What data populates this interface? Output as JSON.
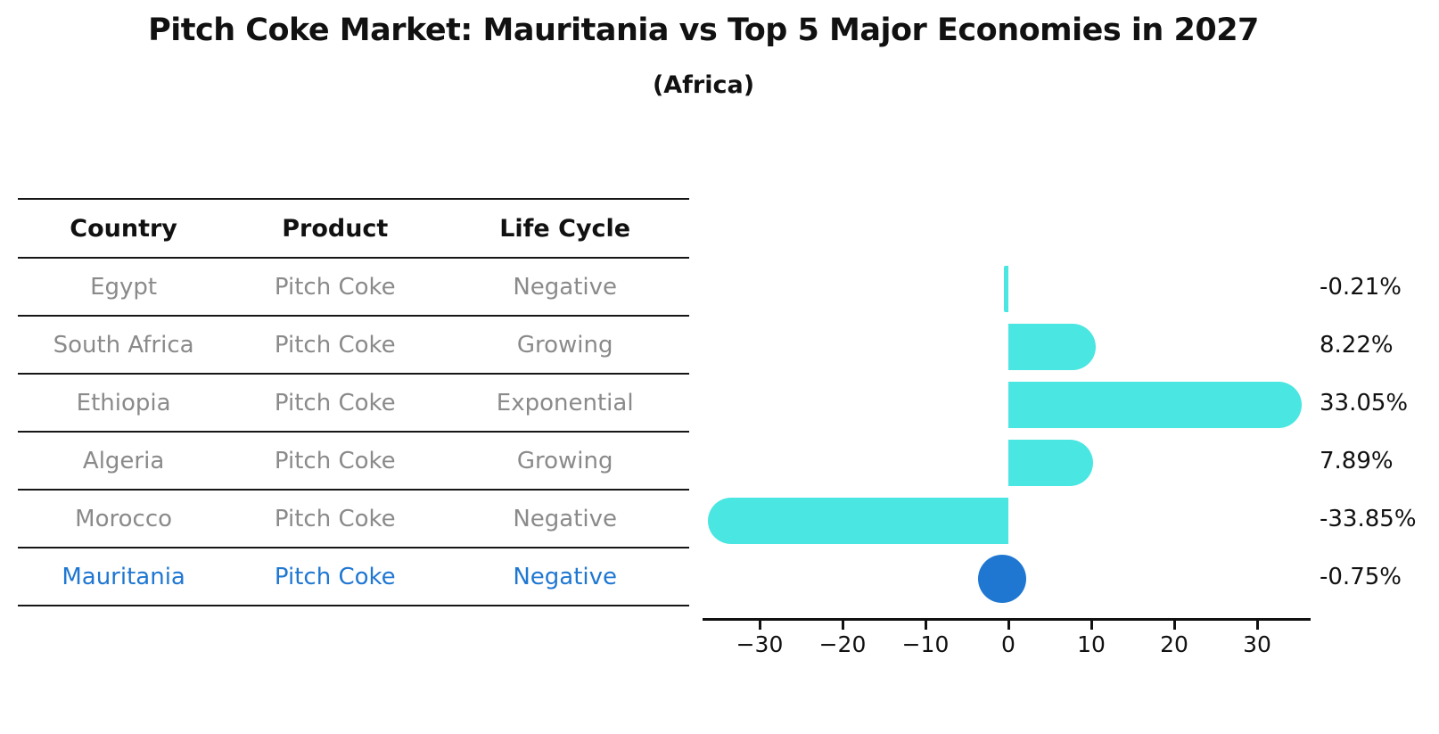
{
  "title": "Pitch Coke Market: Mauritania vs Top 5 Major Economies in 2027",
  "subtitle": "(Africa)",
  "table": {
    "headers": [
      "Country",
      "Product",
      "Life Cycle"
    ],
    "rows": [
      {
        "country": "Egypt",
        "product": "Pitch Coke",
        "life_cycle": "Negative",
        "highlight": false
      },
      {
        "country": "South Africa",
        "product": "Pitch Coke",
        "life_cycle": "Growing",
        "highlight": false
      },
      {
        "country": "Ethiopia",
        "product": "Pitch Coke",
        "life_cycle": "Exponential",
        "highlight": false
      },
      {
        "country": "Algeria",
        "product": "Pitch Coke",
        "life_cycle": "Growing",
        "highlight": false
      },
      {
        "country": "Morocco",
        "product": "Pitch Coke",
        "life_cycle": "Negative",
        "highlight": false
      },
      {
        "country": "Mauritania",
        "product": "Pitch Coke",
        "life_cycle": "Negative",
        "highlight": true
      }
    ]
  },
  "chart_data": {
    "type": "bar",
    "orientation": "horizontal",
    "categories": [
      "Egypt",
      "South Africa",
      "Ethiopia",
      "Algeria",
      "Morocco",
      "Mauritania"
    ],
    "values": [
      -0.21,
      8.22,
      33.05,
      7.89,
      -33.85,
      -0.75
    ],
    "value_labels": [
      "-0.21%",
      "8.22%",
      "33.05%",
      "7.89%",
      "-33.85%",
      "-0.75%"
    ],
    "x_ticks": [
      -30,
      -20,
      -10,
      0,
      10,
      20,
      30
    ],
    "x_tick_labels": [
      "−30",
      "−20",
      "−10",
      "0",
      "10",
      "20",
      "30"
    ],
    "xlim": [
      -37,
      36.5
    ],
    "grid": false,
    "legend": "none",
    "bar_color": "#4AE6E2",
    "highlight_color": "#1F77D2",
    "highlight_index": 5,
    "highlight_marker": "circle"
  },
  "colors": {
    "background": "#ffffff",
    "table_line": "#161616",
    "row_text": "#8a8a8a",
    "header_text": "#111111",
    "axis": "#111111"
  }
}
